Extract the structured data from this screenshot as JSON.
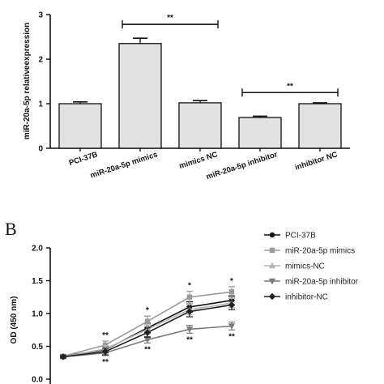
{
  "chart_data": [
    {
      "type": "bar",
      "ylabel": "miR-20a-5p relativeexpression",
      "ylim": [
        0,
        3
      ],
      "yticks": [
        "0",
        "1",
        "2",
        "3"
      ],
      "categories": [
        "PCI-37B",
        "miR-20a-5p mimics",
        "mimics NC",
        "miR-20a-5p inhibitor",
        "inhibitor  NC"
      ],
      "values": [
        1.0,
        2.35,
        1.02,
        0.69,
        1.0
      ],
      "errors": [
        0.04,
        0.12,
        0.05,
        0.03,
        0.02
      ],
      "bar_fill": "#e2e2e2",
      "significance": [
        {
          "from": 1,
          "to": 2,
          "label": "**",
          "y": 2.78
        },
        {
          "from": 3,
          "to": 4,
          "label": "**",
          "y": 1.25
        }
      ],
      "grid": false
    },
    {
      "type": "line",
      "panel_label": "B",
      "ylabel": "OD (450 nm)",
      "ylim": [
        0,
        2.0
      ],
      "yticks": [
        "0.0",
        "0.5",
        "1.0",
        "1.5",
        "2.0"
      ],
      "x": [
        0,
        1,
        2,
        3,
        4
      ],
      "legend_position": "right",
      "series": [
        {
          "name": "PCI-37B",
          "values": [
            0.35,
            0.45,
            0.78,
            1.1,
            1.2
          ],
          "errors": [
            0.02,
            0.05,
            0.07,
            0.08,
            0.07
          ],
          "color": "#111111",
          "marker": "circle"
        },
        {
          "name": "miR-20a-5p mimics",
          "values": [
            0.35,
            0.52,
            0.88,
            1.25,
            1.33
          ],
          "errors": [
            0.02,
            0.06,
            0.08,
            0.09,
            0.08
          ],
          "color": "#9a9a9a",
          "marker": "square"
        },
        {
          "name": "mimics-NC",
          "values": [
            0.34,
            0.46,
            0.76,
            1.06,
            1.16
          ],
          "errors": [
            0.02,
            0.05,
            0.07,
            0.08,
            0.07
          ],
          "color": "#b5b5b5",
          "marker": "triangle-up"
        },
        {
          "name": "miR-20a-5p inhibitor",
          "values": [
            0.34,
            0.4,
            0.6,
            0.76,
            0.81
          ],
          "errors": [
            0.02,
            0.04,
            0.05,
            0.06,
            0.06
          ],
          "color": "#7a7a7a",
          "marker": "triangle-down"
        },
        {
          "name": "inhibitor-NC",
          "values": [
            0.34,
            0.42,
            0.71,
            1.03,
            1.13
          ],
          "errors": [
            0.02,
            0.05,
            0.07,
            0.08,
            0.07
          ],
          "color": "#222222",
          "marker": "diamond"
        }
      ],
      "annotations": [
        {
          "x": 1,
          "above": "**",
          "below": "**"
        },
        {
          "x": 2,
          "above": "*",
          "below": "**"
        },
        {
          "x": 3,
          "above": "*",
          "below": "**"
        },
        {
          "x": 4,
          "above": "*",
          "below": "**"
        }
      ],
      "grid": false
    }
  ]
}
